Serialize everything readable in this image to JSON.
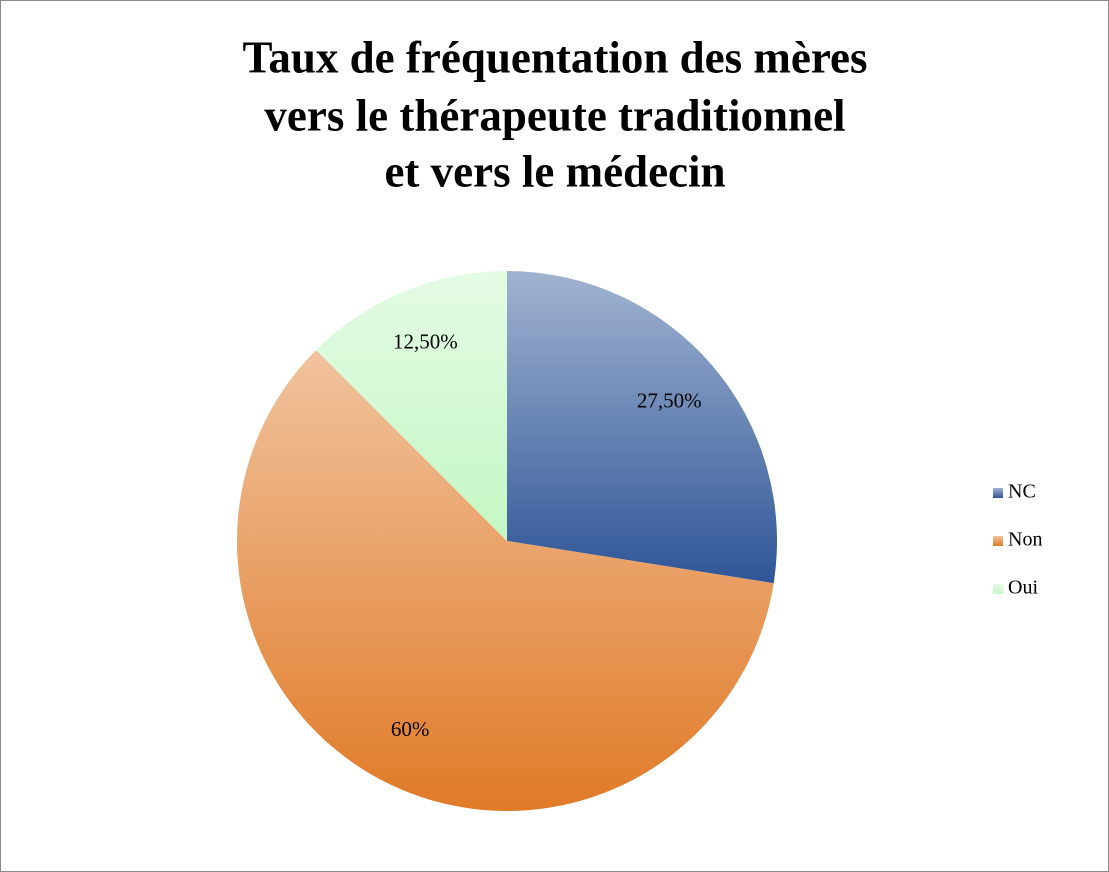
{
  "chart_data": {
    "type": "pie",
    "title": [
      "Taux de fréquentation des mères",
      "vers le thérapeute traditionnel",
      "et vers le médecin"
    ],
    "categories": [
      "NC",
      "Non",
      "Oui"
    ],
    "values": [
      27.5,
      60,
      12.5
    ],
    "value_labels": [
      "27,50%",
      "60%",
      "12,50%"
    ],
    "colors": [
      "#2e5597",
      "#e07a27",
      "#c4f7c4"
    ],
    "legend": "right"
  }
}
